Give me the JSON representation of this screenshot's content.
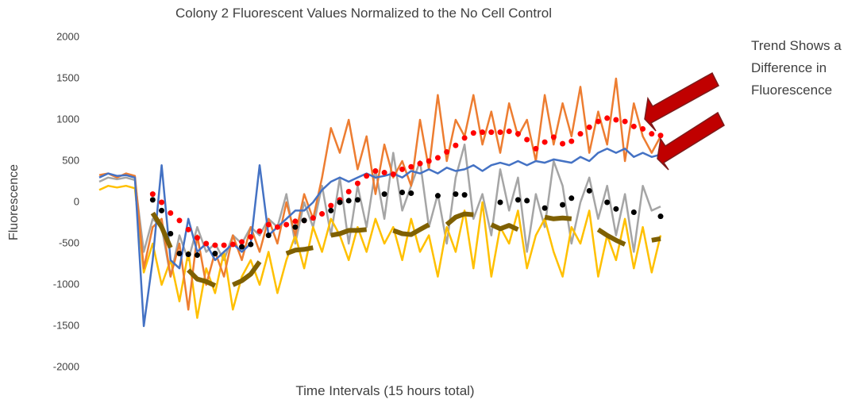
{
  "chart_data": {
    "type": "line",
    "title": "Colony 2 Fluorescent Values Normalized to the  No Cell Control",
    "y_label": "Fluorescence",
    "x_label": "Time Intervals (15 hours total)",
    "annotation": [
      "Trend Shows a",
      "Difference in",
      "Fluorescence"
    ],
    "ylim": [
      -2000,
      2000
    ],
    "yticks": [
      -2000,
      -1500,
      -1000,
      -500,
      0,
      500,
      1000,
      1500,
      2000
    ],
    "grid": false,
    "series": [
      {
        "type": "line",
        "color": "#a5a5a5",
        "values": [
          250,
          300,
          280,
          300,
          270,
          -600,
          -200,
          -300,
          -900,
          -400,
          -700,
          -300,
          -600,
          -500,
          -700,
          -400,
          -500,
          -300,
          -400,
          -200,
          -300,
          100,
          -500,
          0,
          -300,
          200,
          -400,
          300,
          -500,
          200,
          -300,
          400,
          -200,
          600,
          -100,
          200,
          500,
          -300,
          100,
          -500,
          300,
          700,
          -200,
          100,
          -400,
          400,
          -100,
          300,
          -600,
          100,
          -300,
          500,
          200,
          -500,
          0,
          300,
          -200,
          200,
          -400,
          100,
          -600,
          200,
          -100,
          -50
        ]
      },
      {
        "type": "line",
        "color": "#ffc000",
        "values": [
          150,
          200,
          180,
          200,
          170,
          -850,
          -500,
          -1000,
          -700,
          -1200,
          -600,
          -1400,
          -800,
          -1100,
          -600,
          -1300,
          -900,
          -700,
          -1000,
          -600,
          -1100,
          -700,
          -400,
          -800,
          -300,
          -600,
          -200,
          -400,
          -700,
          -300,
          -600,
          -200,
          -500,
          -300,
          -700,
          -200,
          -600,
          -400,
          -900,
          -300,
          -600,
          -100,
          -800,
          0,
          -900,
          -300,
          -500,
          -100,
          -800,
          -400,
          -200,
          -600,
          -900,
          -300,
          -500,
          -100,
          -900,
          -400,
          -700,
          -200,
          -800,
          -300,
          -850,
          -400
        ]
      },
      {
        "type": "line",
        "color": "#ed7d31",
        "values": [
          330,
          350,
          300,
          350,
          320,
          -800,
          -300,
          -200,
          -900,
          -500,
          -1300,
          -400,
          -1000,
          -600,
          -900,
          -400,
          -700,
          -300,
          -600,
          -200,
          -500,
          0,
          -400,
          100,
          -200,
          300,
          900,
          600,
          1000,
          400,
          800,
          100,
          700,
          300,
          500,
          200,
          1000,
          400,
          1300,
          500,
          1000,
          800,
          1300,
          700,
          1100,
          600,
          1200,
          800,
          1000,
          500,
          1300,
          700,
          1200,
          800,
          1400,
          600,
          1100,
          700,
          1500,
          500,
          1200,
          800,
          600,
          800
        ]
      },
      {
        "type": "line",
        "color": "#4472c4",
        "values": [
          300,
          350,
          320,
          330,
          300,
          -1500,
          -700,
          450,
          -700,
          -800,
          -200,
          -600,
          -500,
          -700,
          -600,
          -500,
          -600,
          -500,
          450,
          -400,
          -300,
          -200,
          -100,
          -100,
          0,
          150,
          250,
          300,
          250,
          300,
          350,
          300,
          320,
          350,
          300,
          380,
          350,
          400,
          350,
          420,
          380,
          400,
          450,
          380,
          450,
          480,
          450,
          500,
          450,
          500,
          480,
          520,
          500,
          480,
          550,
          500,
          600,
          650,
          600,
          650,
          550,
          600,
          550,
          580
        ]
      },
      {
        "type": "thick",
        "color": "#7f6000",
        "values": [
          null,
          null,
          null,
          null,
          null,
          null,
          -130,
          -300,
          -550,
          null,
          -820,
          -930,
          -960,
          -1010,
          null,
          -1000,
          -950,
          -870,
          -720,
          null,
          null,
          -620,
          -580,
          -570,
          -550,
          null,
          -400,
          -380,
          -340,
          -340,
          -330,
          null,
          null,
          -340,
          -380,
          -390,
          -330,
          -270,
          null,
          -270,
          -180,
          -140,
          -150,
          null,
          -270,
          -320,
          -280,
          -330,
          null,
          null,
          -180,
          -200,
          -190,
          -200,
          null,
          null,
          -330,
          -400,
          -460,
          -510,
          null,
          null,
          -460,
          -440
        ]
      },
      {
        "type": "scatter",
        "color": "#ff0000",
        "values": [
          null,
          null,
          null,
          null,
          null,
          null,
          100,
          0,
          -130,
          -220,
          -330,
          -430,
          -500,
          -520,
          -520,
          -510,
          -480,
          -420,
          -350,
          -270,
          -300,
          -270,
          -230,
          -220,
          -190,
          -140,
          -40,
          30,
          130,
          230,
          320,
          380,
          360,
          340,
          400,
          430,
          470,
          500,
          540,
          610,
          690,
          780,
          840,
          850,
          850,
          850,
          860,
          830,
          760,
          650,
          730,
          790,
          710,
          740,
          830,
          910,
          980,
          1020,
          1000,
          980,
          920,
          890,
          830,
          810
        ]
      },
      {
        "type": "scatter",
        "color": "#000000",
        "values": [
          null,
          null,
          null,
          null,
          null,
          null,
          30,
          -100,
          -380,
          -620,
          -630,
          -640,
          null,
          -620,
          null,
          null,
          -540,
          -510,
          null,
          -400,
          null,
          null,
          -300,
          -220,
          null,
          null,
          -100,
          0,
          20,
          30,
          null,
          null,
          100,
          null,
          120,
          110,
          null,
          null,
          80,
          null,
          100,
          90,
          null,
          null,
          null,
          0,
          null,
          30,
          20,
          null,
          -70,
          null,
          -30,
          50,
          null,
          140,
          null,
          0,
          -80,
          null,
          -120,
          null,
          null,
          -170
        ]
      }
    ]
  }
}
